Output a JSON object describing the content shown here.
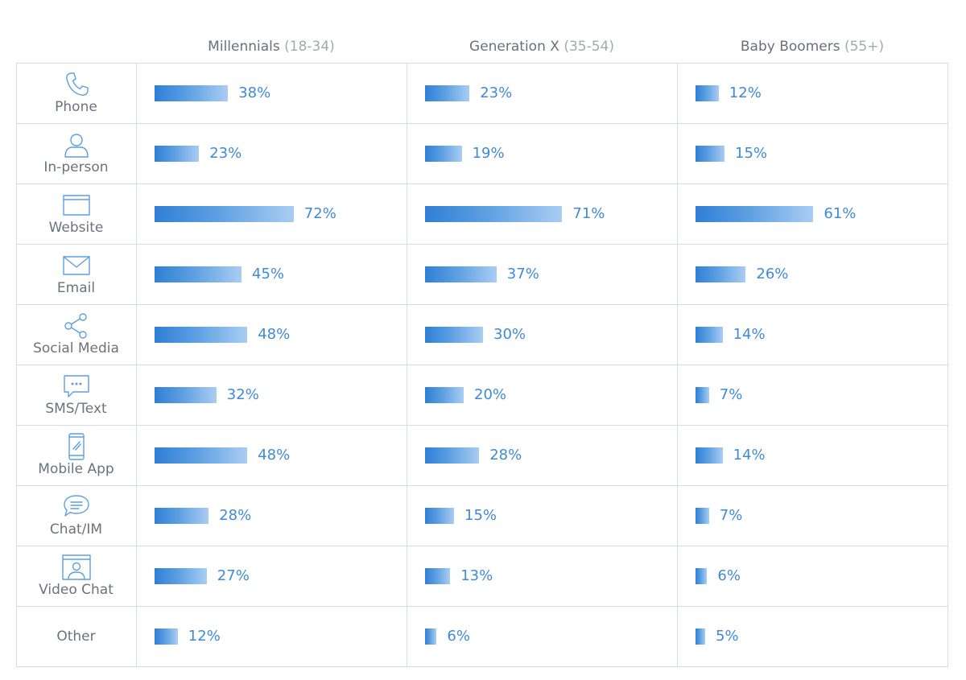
{
  "chart_data": {
    "type": "bar",
    "columns": [
      {
        "name": "Millennials",
        "range": "(18-34)"
      },
      {
        "name": "Generation X",
        "range": "(35-54)"
      },
      {
        "name": "Baby Boomers",
        "range": "(55+)"
      }
    ],
    "categories": [
      {
        "label": "Phone",
        "icon": "phone-icon"
      },
      {
        "label": "In-person",
        "icon": "person-icon"
      },
      {
        "label": "Website",
        "icon": "browser-window-icon"
      },
      {
        "label": "Email",
        "icon": "envelope-icon"
      },
      {
        "label": "Social Media",
        "icon": "share-icon"
      },
      {
        "label": "SMS/Text",
        "icon": "speech-bubble-dots-icon"
      },
      {
        "label": "Mobile App",
        "icon": "smartphone-icon"
      },
      {
        "label": "Chat/IM",
        "icon": "chat-bubble-lines-icon"
      },
      {
        "label": "Video Chat",
        "icon": "video-chat-icon"
      },
      {
        "label": "Other",
        "icon": ""
      }
    ],
    "series": [
      {
        "values": [
          38,
          23,
          72,
          45,
          48,
          32,
          48,
          28,
          27,
          12
        ],
        "labels": [
          "38%",
          "23%",
          "72%",
          "45%",
          "48%",
          "32%",
          "48%",
          "28%",
          "27%",
          "12%"
        ]
      },
      {
        "values": [
          23,
          19,
          71,
          37,
          30,
          20,
          28,
          15,
          13,
          6
        ],
        "labels": [
          "23%",
          "19%",
          "71%",
          "37%",
          "30%",
          "20%",
          "28%",
          "15%",
          "13%",
          "6%"
        ]
      },
      {
        "values": [
          12,
          15,
          61,
          26,
          14,
          7,
          14,
          7,
          6,
          5
        ],
        "labels": [
          "12%",
          "15%",
          "61%",
          "26%",
          "14%",
          "7%",
          "14%",
          "7%",
          "6%",
          "5%"
        ]
      }
    ],
    "value_unit": "%",
    "ylim": [
      0,
      100
    ],
    "grid": true,
    "legend": "none",
    "colors": {
      "bar_start": "#2f7fd6",
      "bar_end": "#a9cdf3",
      "value_label": "#3f8ad8",
      "grid": "#d6dbe1",
      "text": "#6c727b",
      "icon": "#5d9ee0"
    }
  }
}
